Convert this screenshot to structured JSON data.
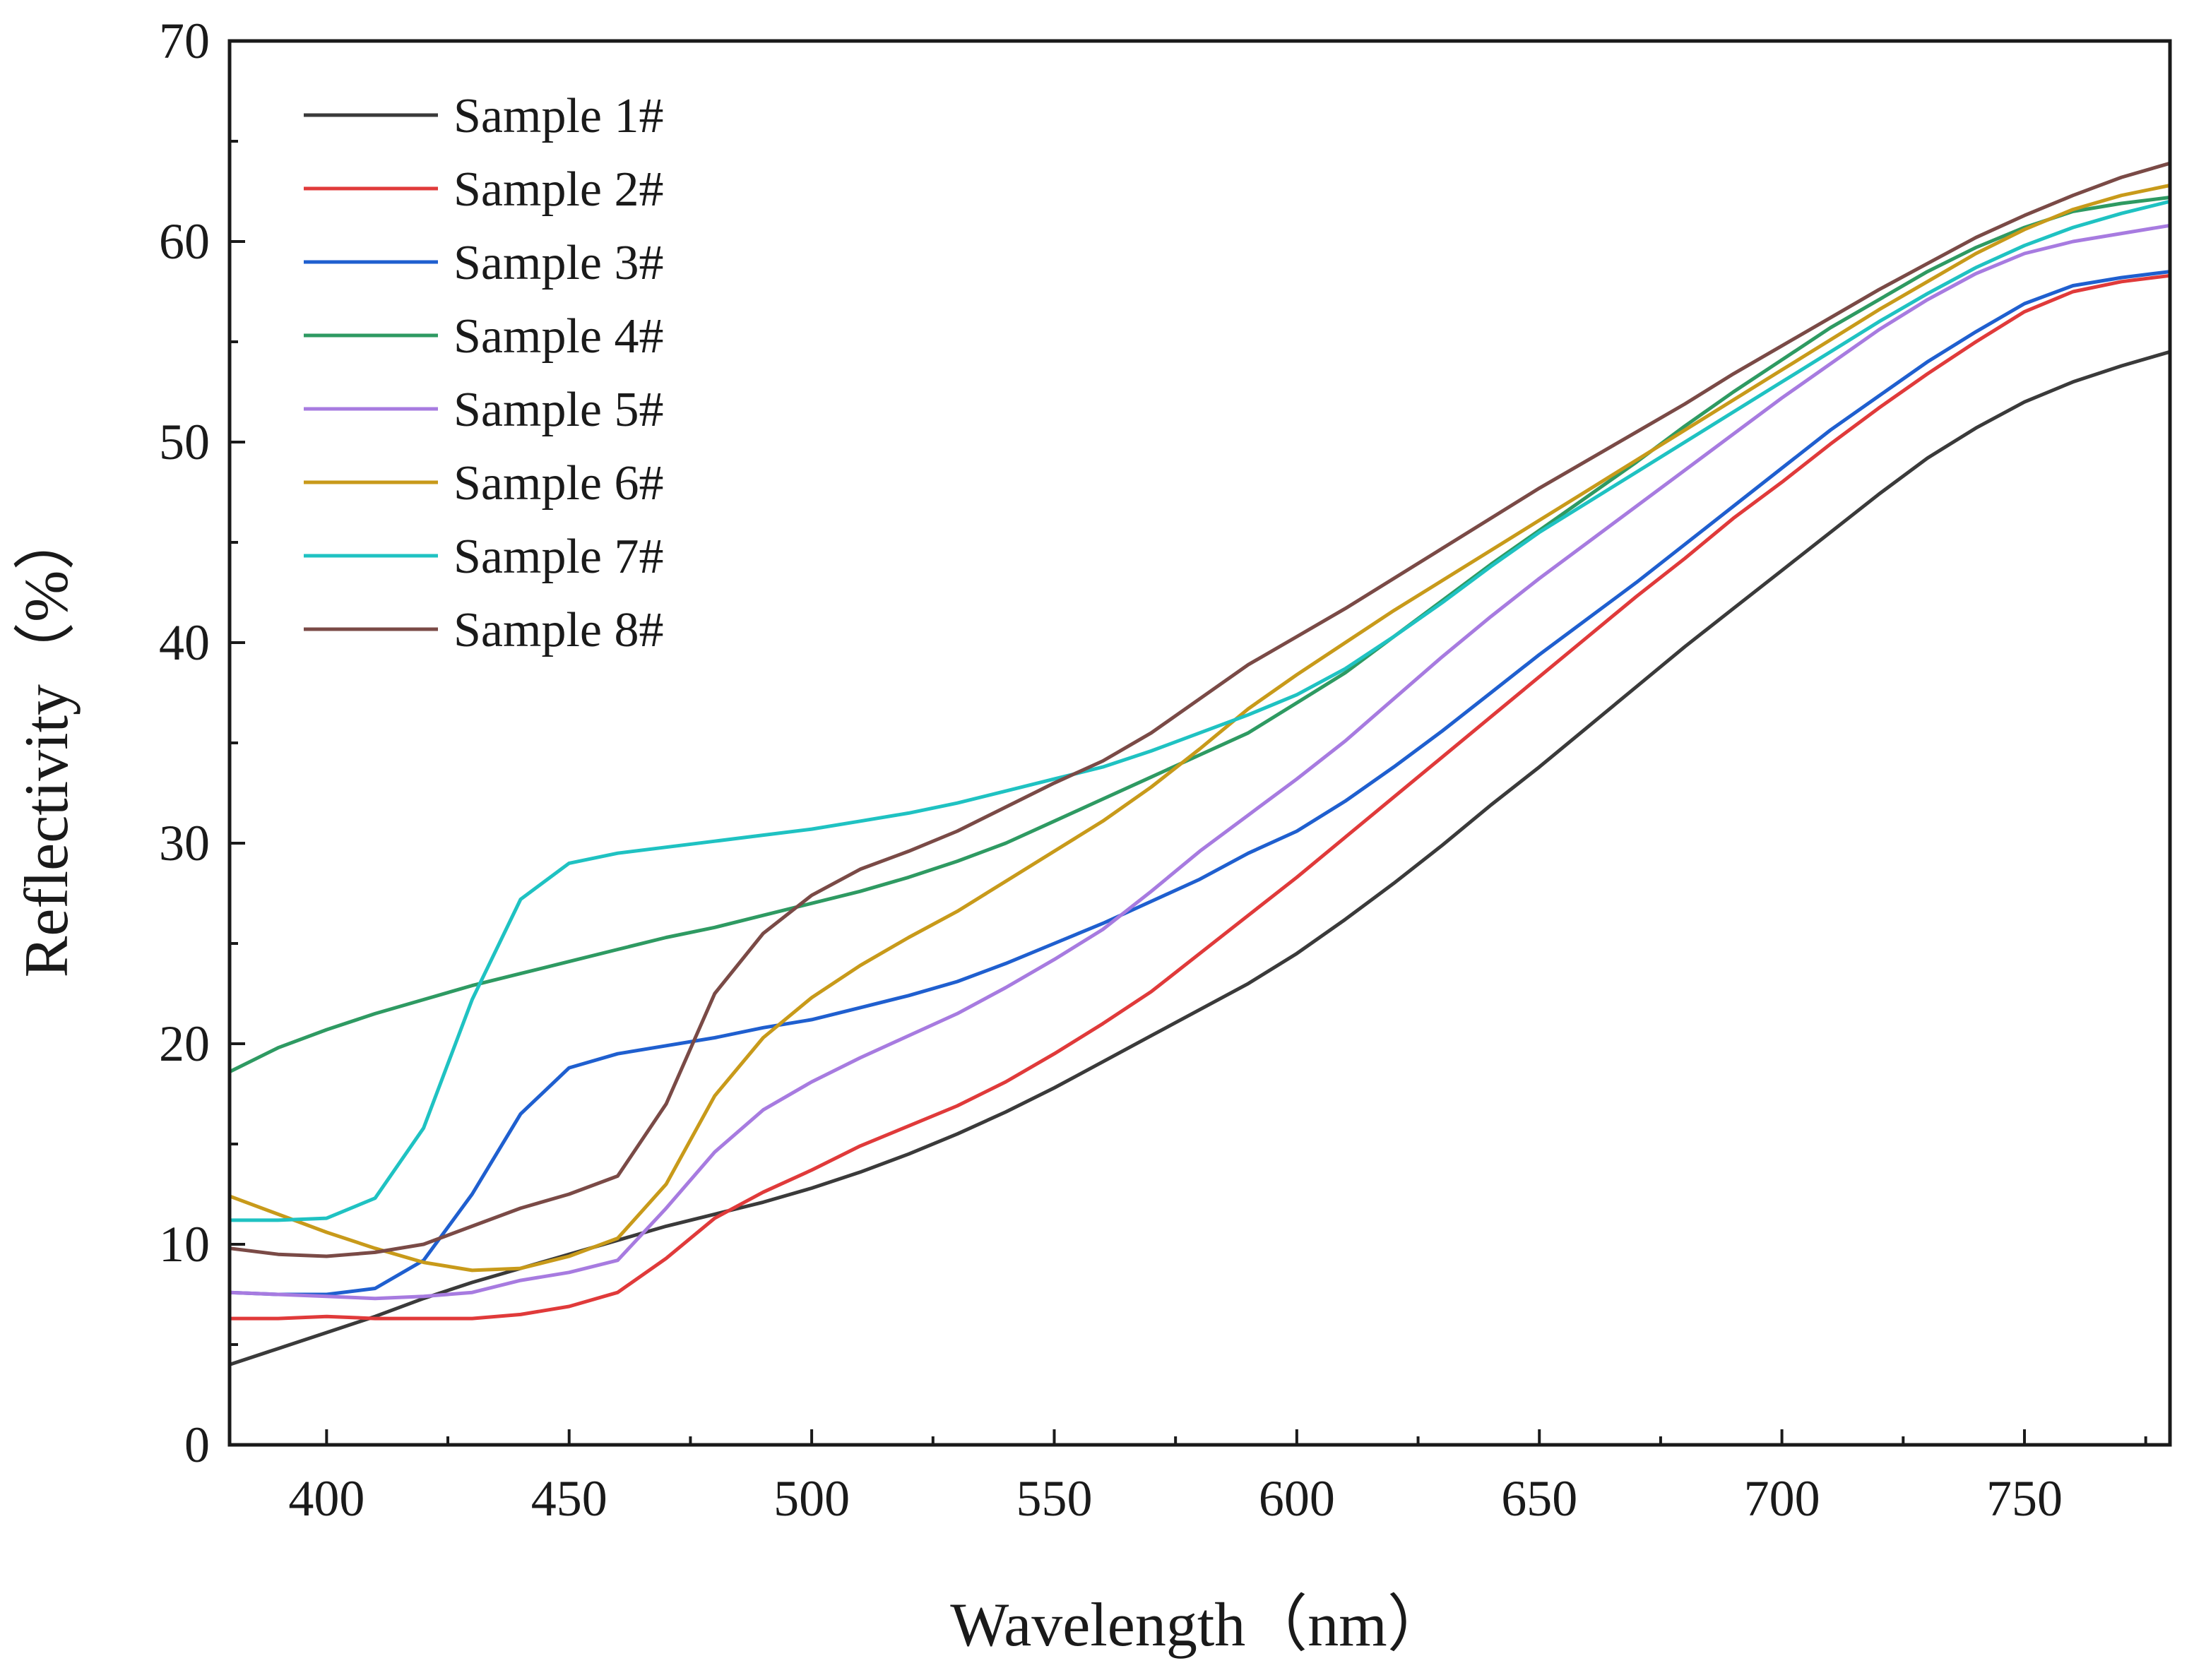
{
  "chart_data": {
    "type": "line",
    "title": "",
    "xlabel": "Wavelength（nm）",
    "ylabel": "Reflectivity（%）",
    "xlim": [
      380,
      780
    ],
    "ylim": [
      0,
      70
    ],
    "x_ticks": [
      400,
      450,
      500,
      550,
      600,
      650,
      700,
      750
    ],
    "y_ticks": [
      0,
      10,
      20,
      30,
      40,
      50,
      60,
      70
    ],
    "grid": false,
    "legend_position": "top-left",
    "x": [
      380,
      390,
      400,
      410,
      420,
      430,
      440,
      450,
      460,
      470,
      480,
      490,
      500,
      510,
      520,
      530,
      540,
      550,
      560,
      570,
      580,
      590,
      600,
      610,
      620,
      630,
      640,
      650,
      660,
      670,
      680,
      690,
      700,
      710,
      720,
      730,
      740,
      750,
      760,
      770,
      780
    ],
    "series": [
      {
        "name": "Sample 1#",
        "color": "#3a3a3a",
        "values": [
          4.0,
          4.8,
          5.6,
          6.4,
          7.3,
          8.1,
          8.8,
          9.5,
          10.2,
          10.9,
          11.5,
          12.1,
          12.8,
          13.6,
          14.5,
          15.5,
          16.6,
          17.8,
          19.1,
          20.4,
          21.7,
          23.0,
          24.5,
          26.2,
          28.0,
          29.9,
          31.9,
          33.8,
          35.8,
          37.8,
          39.8,
          41.7,
          43.6,
          45.5,
          47.4,
          49.2,
          50.7,
          52.0,
          53.0,
          53.8,
          54.5
        ]
      },
      {
        "name": "Sample 2#",
        "color": "#e03a3a",
        "values": [
          6.3,
          6.3,
          6.4,
          6.3,
          6.3,
          6.3,
          6.5,
          6.9,
          7.6,
          9.3,
          11.3,
          12.6,
          13.7,
          14.9,
          15.9,
          16.9,
          18.1,
          19.5,
          21.0,
          22.6,
          24.5,
          26.4,
          28.3,
          30.3,
          32.3,
          34.3,
          36.3,
          38.3,
          40.3,
          42.3,
          44.2,
          46.2,
          48.0,
          49.9,
          51.7,
          53.4,
          55.0,
          56.5,
          57.5,
          58.0,
          58.3
        ]
      },
      {
        "name": "Sample 3#",
        "color": "#1f5fcf",
        "values": [
          7.6,
          7.5,
          7.5,
          7.8,
          9.2,
          12.5,
          16.5,
          18.8,
          19.5,
          19.9,
          20.3,
          20.8,
          21.2,
          21.8,
          22.4,
          23.1,
          24.0,
          25.0,
          26.0,
          27.1,
          28.2,
          29.5,
          30.6,
          32.1,
          33.8,
          35.6,
          37.5,
          39.4,
          41.2,
          43.0,
          44.9,
          46.8,
          48.7,
          50.6,
          52.3,
          54.0,
          55.5,
          56.9,
          57.8,
          58.2,
          58.5
        ]
      },
      {
        "name": "Sample 4#",
        "color": "#2e9a62",
        "values": [
          18.6,
          19.8,
          20.7,
          21.5,
          22.2,
          22.9,
          23.5,
          24.1,
          24.7,
          25.3,
          25.8,
          26.4,
          27.0,
          27.6,
          28.3,
          29.1,
          30.0,
          31.1,
          32.2,
          33.3,
          34.4,
          35.5,
          37.0,
          38.5,
          40.3,
          42.1,
          43.9,
          45.6,
          47.3,
          49.0,
          50.8,
          52.5,
          54.1,
          55.7,
          57.1,
          58.5,
          59.7,
          60.7,
          61.5,
          61.9,
          62.2
        ]
      },
      {
        "name": "Sample 5#",
        "color": "#a77be0",
        "values": [
          7.6,
          7.5,
          7.4,
          7.3,
          7.4,
          7.6,
          8.2,
          8.6,
          9.2,
          11.8,
          14.6,
          16.7,
          18.1,
          19.3,
          20.4,
          21.5,
          22.8,
          24.2,
          25.7,
          27.6,
          29.6,
          31.4,
          33.2,
          35.1,
          37.2,
          39.3,
          41.3,
          43.2,
          45.0,
          46.8,
          48.6,
          50.4,
          52.2,
          53.9,
          55.6,
          57.1,
          58.4,
          59.4,
          60.0,
          60.4,
          60.8
        ]
      },
      {
        "name": "Sample 6#",
        "color": "#c89a1a",
        "values": [
          12.4,
          11.5,
          10.6,
          9.8,
          9.1,
          8.7,
          8.8,
          9.4,
          10.3,
          13.0,
          17.4,
          20.3,
          22.3,
          23.9,
          25.3,
          26.6,
          28.1,
          29.6,
          31.1,
          32.8,
          34.7,
          36.7,
          38.4,
          40.0,
          41.6,
          43.1,
          44.6,
          46.1,
          47.6,
          49.1,
          50.6,
          52.1,
          53.6,
          55.1,
          56.6,
          58.0,
          59.4,
          60.6,
          61.6,
          62.3,
          62.8
        ]
      },
      {
        "name": "Sample 7#",
        "color": "#1fc2c2",
        "values": [
          11.2,
          11.2,
          11.3,
          12.3,
          15.8,
          22.2,
          27.2,
          29.0,
          29.5,
          29.8,
          30.1,
          30.4,
          30.7,
          31.1,
          31.5,
          32.0,
          32.6,
          33.2,
          33.8,
          34.6,
          35.5,
          36.4,
          37.4,
          38.7,
          40.3,
          42.0,
          43.8,
          45.5,
          47.0,
          48.5,
          50.0,
          51.5,
          53.0,
          54.5,
          56.0,
          57.4,
          58.7,
          59.8,
          60.7,
          61.4,
          62.0
        ]
      },
      {
        "name": "Sample 8#",
        "color": "#7a4a46",
        "values": [
          9.8,
          9.5,
          9.4,
          9.6,
          10.0,
          10.9,
          11.8,
          12.5,
          13.4,
          17.0,
          22.5,
          25.5,
          27.4,
          28.7,
          29.6,
          30.6,
          31.8,
          33.0,
          34.1,
          35.5,
          37.2,
          38.9,
          40.3,
          41.7,
          43.2,
          44.7,
          46.2,
          47.7,
          49.1,
          50.5,
          51.9,
          53.4,
          54.8,
          56.2,
          57.6,
          58.9,
          60.2,
          61.3,
          62.3,
          63.2,
          63.9
        ]
      }
    ]
  }
}
